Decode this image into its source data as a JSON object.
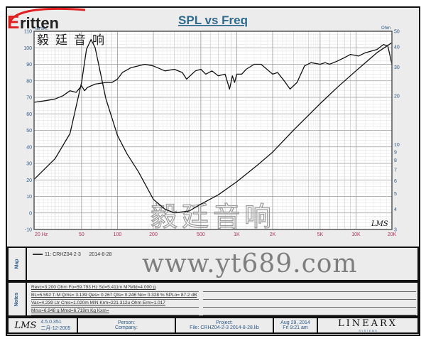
{
  "brand": {
    "logo_text": "ritten",
    "logo_letter": "E",
    "chinese_name": "毅廷音响",
    "logo_color": "#e02020"
  },
  "watermarks": {
    "plot_text": "毅廷音响",
    "url": "www.yt689.com"
  },
  "chart_data": {
    "type": "line",
    "title": "SPL vs Freq",
    "xlabel": "",
    "ylabel_left": "dB SPL",
    "ylabel_right": "Ohm",
    "xscale": "log",
    "xlim": [
      20,
      20000
    ],
    "ylim_left": [
      -10,
      110
    ],
    "ylim_right": [
      3,
      50
    ],
    "yscale_right": "log",
    "grid": true,
    "x_tick_labels": [
      "20  Hz",
      "50",
      "100",
      "200",
      "500",
      "1K",
      "2K",
      "5K",
      "10K",
      "20K"
    ],
    "x_tick_values": [
      20,
      50,
      100,
      200,
      500,
      1000,
      2000,
      5000,
      10000,
      20000
    ],
    "y_left_ticks": [
      -10,
      0,
      10,
      20,
      30,
      40,
      50,
      60,
      70,
      80,
      90,
      100,
      110
    ],
    "y_right_ticks": [
      3,
      4,
      5,
      6,
      7,
      8,
      9,
      10,
      20,
      30,
      40,
      50
    ],
    "series": [
      {
        "axis": "left",
        "unit": "dB SPL",
        "x": [
          20,
          25,
          30,
          35,
          40,
          45,
          50,
          53,
          56,
          65,
          80,
          90,
          100,
          110,
          130,
          170,
          200,
          250,
          300,
          350,
          380,
          450,
          500,
          550,
          620,
          700,
          800,
          870,
          920,
          960,
          1000,
          1100,
          1200,
          1400,
          1600,
          2000,
          2200,
          2500,
          2800,
          3200,
          3700,
          4200,
          5000,
          5500,
          6000,
          7000,
          8000,
          9000,
          10500,
          12000,
          15000,
          17000,
          18500,
          20000
        ],
        "y": [
          67,
          68,
          69,
          71,
          74,
          73,
          77,
          74,
          76,
          78,
          79,
          79,
          81,
          85,
          88,
          90,
          89,
          86,
          87,
          85,
          81,
          86,
          87,
          84,
          86,
          83,
          84,
          75,
          83,
          79,
          84,
          84,
          87,
          90,
          90,
          84,
          85,
          80,
          75,
          79,
          89,
          91,
          90,
          91,
          90,
          92,
          94,
          96,
          95,
          97,
          99,
          102,
          101,
          90
        ]
      },
      {
        "axis": "right",
        "unit": "Ohm",
        "x": [
          20,
          30,
          40,
          50,
          55,
          60,
          65,
          70,
          80,
          100,
          120,
          150,
          200,
          250,
          300,
          400,
          500,
          700,
          1000,
          1500,
          2000,
          3000,
          5000,
          7000,
          10000,
          15000,
          20000
        ],
        "y": [
          6.1,
          8.2,
          11.7,
          24.2,
          38.7,
          44.5,
          39.6,
          30.6,
          19.2,
          11.4,
          8.8,
          6.8,
          4.6,
          4.0,
          3.8,
          3.9,
          4.3,
          4.9,
          5.9,
          7.5,
          9.0,
          12.3,
          17.9,
          22.6,
          28.5,
          36.9,
          42.5
        ]
      }
    ],
    "corner_logo": "LMS"
  },
  "map": {
    "label": "Map",
    "entry": "11: CRHZ04-2-3",
    "entry_date": "2014-8-28"
  },
  "notes": {
    "label": "Notes",
    "lines": [
      "Revc=3.200 Ohm  Fo=59.793 Hz  Sd=5.411m M?Mld=4.000 g",
      "BL=5.592 T·M  Qms= 3.139  Qes= 0.267  Qts= 0.246  No= 0.328 %  SPLo= 87.2 dB",
      "Vas=4.239 Ltr  Cms=1.020m M/N  Krm=221.312u Ohm  Erm=1.017",
      "Mms=6.948 g  Mmd=6.719m Kg  Kxm="
    ]
  },
  "footer": {
    "app_logo": "LMS",
    "version": "4.5.0.351",
    "build_date": "二月-12-2005",
    "person_label": "Person:",
    "company_label": "Company:",
    "project_label": "Project:",
    "file": "File: CRHZ04-2-3    2014-8-28.lib",
    "date": "Aug 29, 2014",
    "time": "Fri  9:21 am",
    "brand": "LINEARX",
    "brand_sub": "S Y S T E M S"
  }
}
